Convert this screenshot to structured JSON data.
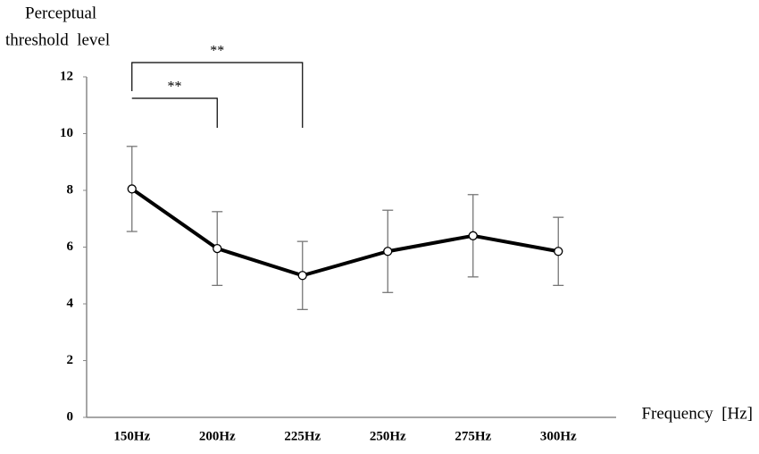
{
  "chart_data": {
    "type": "line",
    "ylabel": [
      "Perceptual",
      "threshold  level"
    ],
    "xlabel": "Frequency  [Hz]",
    "categories": [
      "150Hz",
      "200Hz",
      "225Hz",
      "250Hz",
      "275Hz",
      "300Hz"
    ],
    "values": [
      8.05,
      5.95,
      5.0,
      5.85,
      6.4,
      5.85
    ],
    "errors": [
      1.5,
      1.3,
      1.2,
      1.45,
      1.45,
      1.2
    ],
    "color": "#000000",
    "ylim": [
      0,
      12
    ],
    "yticks": [
      0,
      2,
      4,
      6,
      8,
      10,
      12
    ],
    "significance": [
      {
        "from": "150Hz",
        "to": "200Hz",
        "label": "**"
      },
      {
        "from": "150Hz",
        "to": "225Hz",
        "label": "**"
      }
    ]
  }
}
